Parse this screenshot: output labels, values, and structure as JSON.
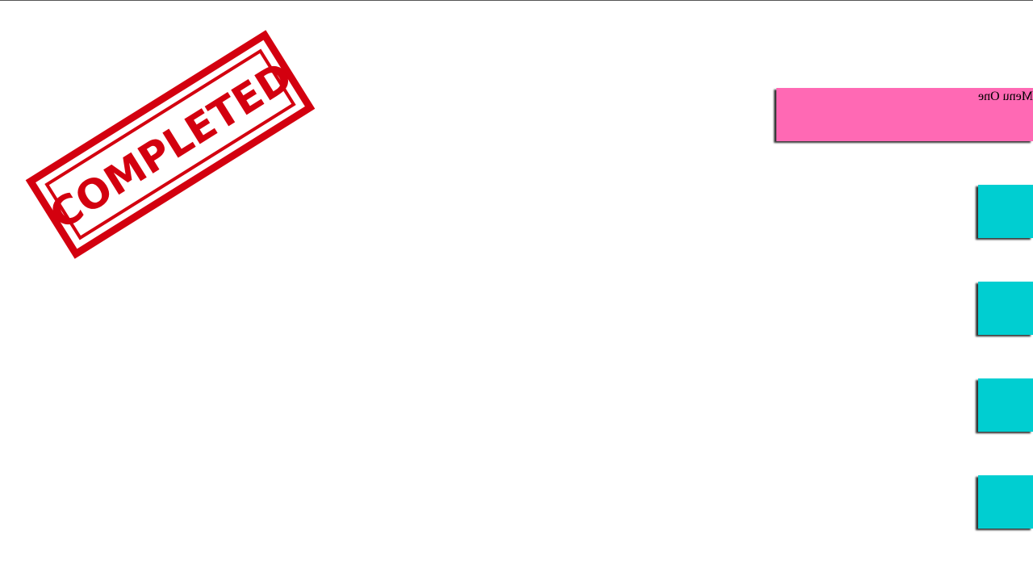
{
  "stamp": {
    "text": "COMPLETED",
    "color": "#d3000f"
  },
  "menu": {
    "menu_one_label": "Menu One",
    "menu_one_color": "#ff69b4",
    "tab_color": "#00ced1"
  }
}
